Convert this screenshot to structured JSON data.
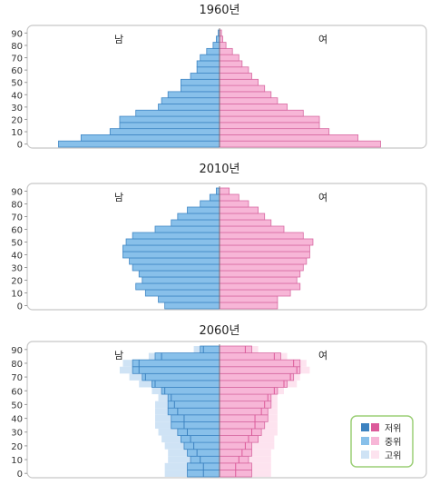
{
  "chart_data": [
    {
      "type": "bar",
      "title": "1960년",
      "male_label": "남",
      "female_label": "여",
      "categories": [
        "0",
        "5",
        "10",
        "15",
        "20",
        "25",
        "30",
        "35",
        "40",
        "45",
        "50",
        "55",
        "60",
        "65",
        "70",
        "75",
        "80",
        "85",
        "90"
      ],
      "y_ticks": [
        "0",
        "10",
        "20",
        "30",
        "40",
        "50",
        "60",
        "70",
        "80",
        "90"
      ],
      "xlim": [
        -55,
        70
      ],
      "series": [
        {
          "name": "남",
          "values": [
            -50,
            -43,
            -34,
            -31,
            -31,
            -26,
            -19,
            -18,
            -16,
            -12,
            -12,
            -9,
            -7,
            -7,
            -6,
            -4,
            -2,
            -1,
            -0.4
          ]
        },
        {
          "name": "여",
          "values": [
            50,
            43,
            34,
            31,
            31,
            26,
            21,
            18,
            16,
            14,
            12,
            10,
            9,
            7,
            6,
            4,
            2,
            1,
            0.6
          ]
        }
      ]
    },
    {
      "type": "bar",
      "title": "2010년",
      "male_label": "남",
      "female_label": "여",
      "categories": [
        "0",
        "5",
        "10",
        "15",
        "20",
        "25",
        "30",
        "35",
        "40",
        "45",
        "50",
        "55",
        "60",
        "65",
        "70",
        "75",
        "80",
        "85",
        "90"
      ],
      "y_ticks": [
        "0",
        "10",
        "20",
        "30",
        "40",
        "50",
        "60",
        "70",
        "80",
        "90"
      ],
      "xlim": [
        -55,
        70
      ],
      "series": [
        {
          "name": "남",
          "values": [
            -17,
            -19,
            -23,
            -26,
            -24,
            -25,
            -27,
            -28,
            -30,
            -30,
            -29,
            -27,
            -20,
            -15,
            -13,
            -10,
            -6,
            -3,
            -1
          ]
        },
        {
          "name": "여",
          "values": [
            18,
            18,
            22,
            25,
            24,
            25,
            26,
            27,
            28,
            28,
            29,
            26,
            20,
            16,
            14,
            12,
            9,
            6,
            3
          ]
        }
      ]
    },
    {
      "type": "bar",
      "title": "2060년",
      "male_label": "남",
      "female_label": "여",
      "categories": [
        "0",
        "5",
        "10",
        "15",
        "20",
        "25",
        "30",
        "35",
        "40",
        "45",
        "50",
        "55",
        "60",
        "65",
        "70",
        "75",
        "80",
        "85",
        "90"
      ],
      "y_ticks": [
        "0",
        "10",
        "20",
        "30",
        "40",
        "50",
        "60",
        "70",
        "80",
        "90"
      ],
      "xlim": [
        -55,
        70
      ],
      "legend": {
        "position": "bottom-right",
        "items": [
          "저위",
          "중위",
          "고위"
        ]
      },
      "series": [
        {
          "name": "중위-남",
          "values": [
            -10,
            -10,
            -9,
            -10,
            -11,
            -12,
            -13,
            -15,
            -15,
            -16,
            -16,
            -16,
            -18,
            -21,
            -24,
            -27,
            -27,
            -20,
            -6
          ]
        },
        {
          "name": "중위-여",
          "values": [
            10,
            10,
            9,
            10,
            10,
            12,
            13,
            14,
            15,
            15,
            16,
            16,
            18,
            21,
            23,
            25,
            25,
            19,
            10
          ]
        },
        {
          "name": "저위-남",
          "values": [
            -5,
            -5,
            -6,
            -7,
            -8,
            -9,
            -10,
            -11,
            -11,
            -13,
            -14,
            -15,
            -17,
            -20,
            -23,
            -25,
            -25,
            -18,
            -5
          ]
        },
        {
          "name": "저위-여",
          "values": [
            5,
            5,
            6,
            7,
            8,
            9,
            10,
            11,
            11,
            13,
            14,
            15,
            17,
            20,
            22,
            24,
            23,
            17,
            8
          ]
        },
        {
          "name": "고위-남",
          "values": [
            -17,
            -17,
            -16,
            -16,
            -17,
            -18,
            -19,
            -20,
            -20,
            -20,
            -20,
            -19,
            -21,
            -25,
            -28,
            -31,
            -30,
            -22,
            -8
          ]
        },
        {
          "name": "고위-여",
          "values": [
            16,
            16,
            16,
            16,
            17,
            17,
            18,
            18,
            18,
            18,
            18,
            18,
            20,
            24,
            25,
            28,
            27,
            21,
            12
          ]
        }
      ]
    }
  ],
  "colors": {
    "male_mid": "#88c0ea",
    "male_mid_stroke": "#3f86c4",
    "female_mid": "#f7b6d7",
    "female_mid_stroke": "#d76aa2",
    "male_low": "#3c82c0",
    "female_low": "#dc5a9a",
    "male_high": "#cfe3f5",
    "female_high": "#fde3ef",
    "frame": "#c8c8c8",
    "legend_border": "#9ccf77"
  }
}
